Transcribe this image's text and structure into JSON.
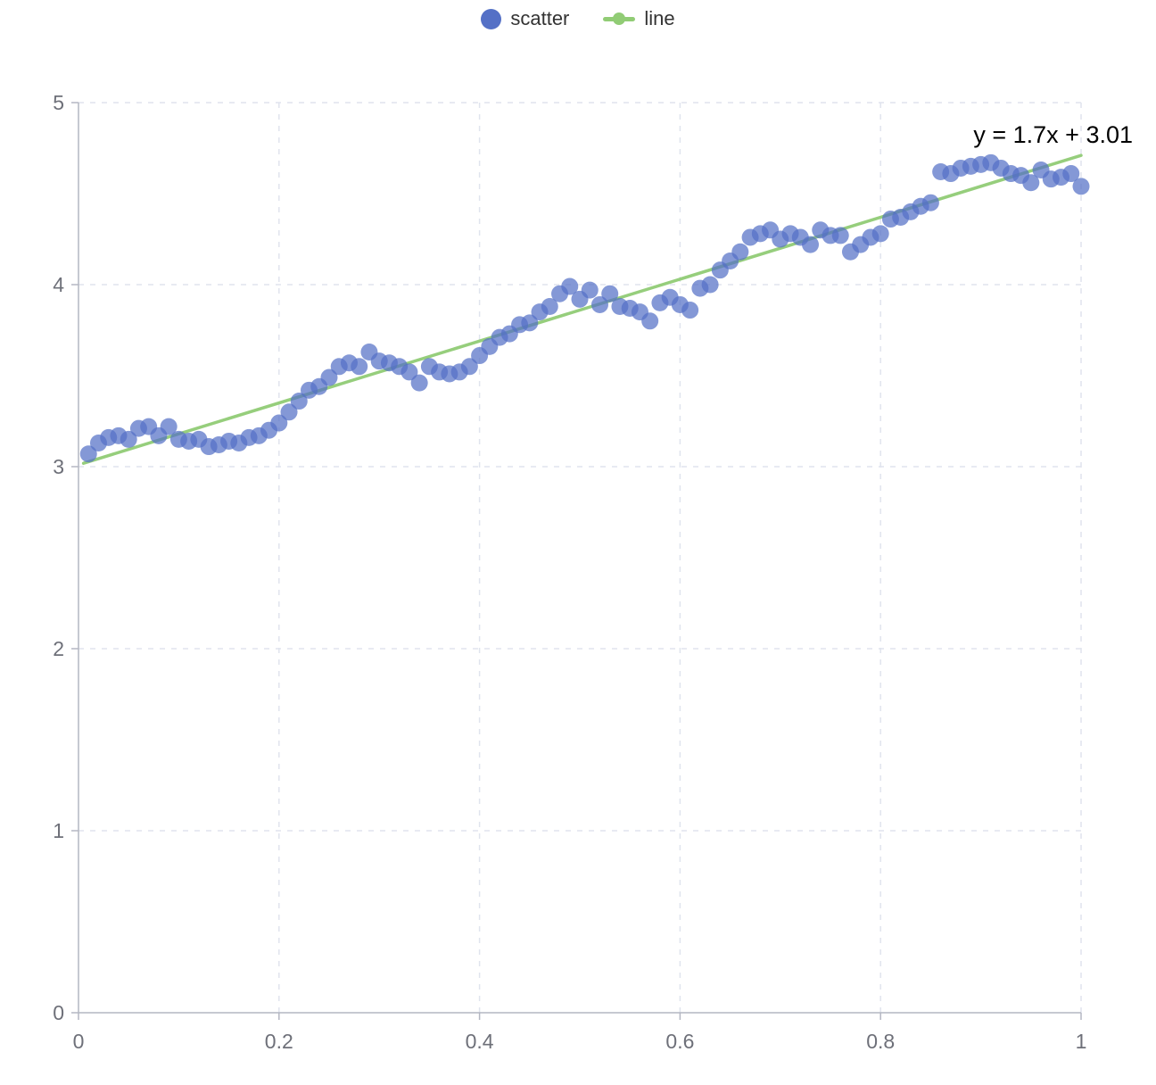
{
  "legend": {
    "items": [
      {
        "label": "scatter",
        "color": "#5470c6",
        "type": "scatter"
      },
      {
        "label": "line",
        "color": "#91cc75",
        "type": "line"
      }
    ]
  },
  "chart_data": {
    "type": "scatter",
    "title": "",
    "xlabel": "",
    "ylabel": "",
    "xlim": [
      0,
      1
    ],
    "ylim": [
      0,
      5
    ],
    "grid": true,
    "legend_position": "top-center",
    "annotation": {
      "text": "y = 1.7x + 3.01"
    },
    "xticks": {
      "values": [
        0,
        0.2,
        0.4,
        0.6,
        0.8,
        1
      ],
      "labels": [
        "0",
        "0.2",
        "0.4",
        "0.6",
        "0.8",
        "1"
      ]
    },
    "yticks": {
      "values": [
        0,
        1,
        2,
        3,
        4,
        5
      ],
      "labels": [
        "0",
        "1",
        "2",
        "3",
        "4",
        "5"
      ]
    },
    "style": {
      "grid_color": "#e0e4ee",
      "axis_color": "#b4b7c2",
      "tick_label_color": "#6e7079",
      "scatter_color": "#5470c6",
      "scatter_opacity": 0.72,
      "line_color": "#91cc75"
    },
    "series": [
      {
        "name": "scatter",
        "type": "scatter",
        "color": "#5470c6",
        "points": [
          [
            0.01,
            3.07
          ],
          [
            0.02,
            3.13
          ],
          [
            0.03,
            3.16
          ],
          [
            0.04,
            3.17
          ],
          [
            0.05,
            3.15
          ],
          [
            0.06,
            3.21
          ],
          [
            0.07,
            3.22
          ],
          [
            0.08,
            3.17
          ],
          [
            0.09,
            3.22
          ],
          [
            0.1,
            3.15
          ],
          [
            0.11,
            3.14
          ],
          [
            0.12,
            3.15
          ],
          [
            0.13,
            3.11
          ],
          [
            0.14,
            3.12
          ],
          [
            0.15,
            3.14
          ],
          [
            0.16,
            3.13
          ],
          [
            0.17,
            3.16
          ],
          [
            0.18,
            3.17
          ],
          [
            0.19,
            3.2
          ],
          [
            0.2,
            3.24
          ],
          [
            0.21,
            3.3
          ],
          [
            0.22,
            3.36
          ],
          [
            0.23,
            3.42
          ],
          [
            0.24,
            3.44
          ],
          [
            0.25,
            3.49
          ],
          [
            0.26,
            3.55
          ],
          [
            0.27,
            3.57
          ],
          [
            0.28,
            3.55
          ],
          [
            0.29,
            3.63
          ],
          [
            0.3,
            3.58
          ],
          [
            0.31,
            3.57
          ],
          [
            0.32,
            3.55
          ],
          [
            0.33,
            3.52
          ],
          [
            0.34,
            3.46
          ],
          [
            0.35,
            3.55
          ],
          [
            0.36,
            3.52
          ],
          [
            0.37,
            3.51
          ],
          [
            0.38,
            3.52
          ],
          [
            0.39,
            3.55
          ],
          [
            0.4,
            3.61
          ],
          [
            0.41,
            3.66
          ],
          [
            0.42,
            3.71
          ],
          [
            0.43,
            3.73
          ],
          [
            0.44,
            3.78
          ],
          [
            0.45,
            3.79
          ],
          [
            0.46,
            3.85
          ],
          [
            0.47,
            3.88
          ],
          [
            0.48,
            3.95
          ],
          [
            0.49,
            3.99
          ],
          [
            0.5,
            3.92
          ],
          [
            0.51,
            3.97
          ],
          [
            0.52,
            3.89
          ],
          [
            0.53,
            3.95
          ],
          [
            0.54,
            3.88
          ],
          [
            0.55,
            3.87
          ],
          [
            0.56,
            3.85
          ],
          [
            0.57,
            3.8
          ],
          [
            0.58,
            3.9
          ],
          [
            0.59,
            3.93
          ],
          [
            0.6,
            3.89
          ],
          [
            0.61,
            3.86
          ],
          [
            0.62,
            3.98
          ],
          [
            0.63,
            4.0
          ],
          [
            0.64,
            4.08
          ],
          [
            0.65,
            4.13
          ],
          [
            0.66,
            4.18
          ],
          [
            0.67,
            4.26
          ],
          [
            0.68,
            4.28
          ],
          [
            0.69,
            4.3
          ],
          [
            0.7,
            4.25
          ],
          [
            0.71,
            4.28
          ],
          [
            0.72,
            4.26
          ],
          [
            0.73,
            4.22
          ],
          [
            0.74,
            4.3
          ],
          [
            0.75,
            4.27
          ],
          [
            0.76,
            4.27
          ],
          [
            0.77,
            4.18
          ],
          [
            0.78,
            4.22
          ],
          [
            0.79,
            4.26
          ],
          [
            0.8,
            4.28
          ],
          [
            0.81,
            4.36
          ],
          [
            0.82,
            4.37
          ],
          [
            0.83,
            4.4
          ],
          [
            0.84,
            4.43
          ],
          [
            0.85,
            4.45
          ],
          [
            0.86,
            4.62
          ],
          [
            0.87,
            4.61
          ],
          [
            0.88,
            4.64
          ],
          [
            0.89,
            4.65
          ],
          [
            0.9,
            4.66
          ],
          [
            0.91,
            4.67
          ],
          [
            0.92,
            4.64
          ],
          [
            0.93,
            4.61
          ],
          [
            0.94,
            4.6
          ],
          [
            0.95,
            4.56
          ],
          [
            0.96,
            4.63
          ],
          [
            0.97,
            4.58
          ],
          [
            0.98,
            4.59
          ],
          [
            0.99,
            4.61
          ],
          [
            1.0,
            4.54
          ]
        ]
      },
      {
        "name": "line",
        "type": "line",
        "color": "#91cc75",
        "slope": 1.7,
        "intercept": 3.01,
        "x_range": [
          0.005,
          1.0
        ]
      }
    ]
  }
}
